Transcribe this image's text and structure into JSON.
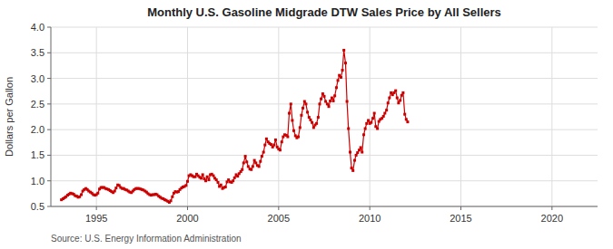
{
  "chart_data": {
    "type": "line",
    "title": "Monthly U.S. Gasoline Midgrade DTW Sales Price by All Sellers",
    "y_label": "Dollars per Gallon",
    "annotation": "Source: U.S. Energy Information Administration",
    "color": "#CC0000",
    "marker": "square",
    "line_style": "solid",
    "grid": true,
    "xlim": [
      1992.5,
      2022.5
    ],
    "xticks": [
      1995,
      2000,
      2005,
      2010,
      2015,
      2020
    ],
    "ylim": [
      0.5,
      4.0
    ],
    "yticks": [
      0.5,
      {
        "value": 1.0,
        "label": "1.0"
      },
      1.5,
      {
        "value": 2.0,
        "label": "2.0"
      },
      2.5,
      {
        "value": 3.0,
        "label": "3.0"
      },
      3.5,
      {
        "value": 4.0,
        "label": "4.0"
      }
    ],
    "x": [
      1993.08,
      1993.17,
      1993.25,
      1993.33,
      1993.42,
      1993.5,
      1993.58,
      1993.67,
      1993.75,
      1993.83,
      1993.92,
      1994.0,
      1994.08,
      1994.17,
      1994.25,
      1994.33,
      1994.42,
      1994.5,
      1994.58,
      1994.67,
      1994.75,
      1994.83,
      1994.92,
      1995.0,
      1995.08,
      1995.17,
      1995.25,
      1995.33,
      1995.42,
      1995.5,
      1995.58,
      1995.67,
      1995.75,
      1995.83,
      1995.92,
      1996.0,
      1996.08,
      1996.17,
      1996.25,
      1996.33,
      1996.42,
      1996.5,
      1996.58,
      1996.67,
      1996.75,
      1996.83,
      1996.92,
      1997.0,
      1997.08,
      1997.17,
      1997.25,
      1997.33,
      1997.42,
      1997.5,
      1997.58,
      1997.67,
      1997.75,
      1997.83,
      1997.92,
      1998.0,
      1998.08,
      1998.17,
      1998.25,
      1998.33,
      1998.42,
      1998.5,
      1998.58,
      1998.67,
      1998.75,
      1998.83,
      1998.92,
      1999.0,
      1999.08,
      1999.17,
      1999.25,
      1999.33,
      1999.42,
      1999.5,
      1999.58,
      1999.67,
      1999.75,
      1999.83,
      1999.92,
      2000.0,
      2000.08,
      2000.17,
      2000.25,
      2000.33,
      2000.42,
      2000.5,
      2000.58,
      2000.67,
      2000.75,
      2000.83,
      2000.92,
      2001.0,
      2001.08,
      2001.17,
      2001.25,
      2001.33,
      2001.42,
      2001.5,
      2001.58,
      2001.67,
      2001.75,
      2001.83,
      2001.92,
      2002.0,
      2002.08,
      2002.17,
      2002.25,
      2002.33,
      2002.42,
      2002.5,
      2002.58,
      2002.67,
      2002.75,
      2002.83,
      2002.92,
      2003.0,
      2003.08,
      2003.17,
      2003.25,
      2003.33,
      2003.42,
      2003.5,
      2003.58,
      2003.67,
      2003.75,
      2003.83,
      2003.92,
      2004.0,
      2004.08,
      2004.17,
      2004.25,
      2004.33,
      2004.42,
      2004.5,
      2004.58,
      2004.67,
      2004.75,
      2004.83,
      2004.92,
      2005.0,
      2005.08,
      2005.17,
      2005.25,
      2005.33,
      2005.42,
      2005.5,
      2005.58,
      2005.67,
      2005.75,
      2005.83,
      2005.92,
      2006.0,
      2006.08,
      2006.17,
      2006.25,
      2006.33,
      2006.42,
      2006.5,
      2006.58,
      2006.67,
      2006.75,
      2006.83,
      2006.92,
      2007.0,
      2007.08,
      2007.17,
      2007.25,
      2007.33,
      2007.42,
      2007.5,
      2007.58,
      2007.67,
      2007.75,
      2007.83,
      2007.92,
      2008.0,
      2008.08,
      2008.17,
      2008.25,
      2008.33,
      2008.42,
      2008.5,
      2008.58,
      2008.67,
      2008.75,
      2008.83,
      2008.92,
      2009.0,
      2009.08,
      2009.17,
      2009.25,
      2009.33,
      2009.42,
      2009.5,
      2009.58,
      2009.67,
      2009.75,
      2009.83,
      2009.92,
      2010.0,
      2010.08,
      2010.17,
      2010.25,
      2010.33,
      2010.42,
      2010.5,
      2010.58,
      2010.67,
      2010.75,
      2010.83,
      2010.92,
      2011.0,
      2011.08,
      2011.17,
      2011.25,
      2011.33,
      2011.42,
      2011.5,
      2011.58,
      2011.67,
      2011.75,
      2011.83,
      2011.92,
      2012.0,
      2012.08
    ],
    "values": [
      0.63,
      0.65,
      0.67,
      0.69,
      0.72,
      0.74,
      0.76,
      0.75,
      0.74,
      0.71,
      0.7,
      0.68,
      0.69,
      0.73,
      0.8,
      0.83,
      0.85,
      0.83,
      0.8,
      0.78,
      0.76,
      0.73,
      0.72,
      0.73,
      0.76,
      0.84,
      0.87,
      0.87,
      0.87,
      0.85,
      0.84,
      0.83,
      0.81,
      0.79,
      0.77,
      0.8,
      0.86,
      0.92,
      0.91,
      0.87,
      0.85,
      0.85,
      0.83,
      0.82,
      0.8,
      0.78,
      0.77,
      0.8,
      0.83,
      0.85,
      0.85,
      0.85,
      0.84,
      0.83,
      0.82,
      0.8,
      0.78,
      0.75,
      0.73,
      0.72,
      0.73,
      0.73,
      0.74,
      0.73,
      0.7,
      0.68,
      0.66,
      0.65,
      0.63,
      0.62,
      0.6,
      0.58,
      0.61,
      0.69,
      0.76,
      0.79,
      0.78,
      0.79,
      0.83,
      0.86,
      0.88,
      0.89,
      0.91,
      0.99,
      1.1,
      1.12,
      1.1,
      1.08,
      1.08,
      1.13,
      1.1,
      1.07,
      1.05,
      1.12,
      1.04,
      1.0,
      1.08,
      1.02,
      1.12,
      1.13,
      1.1,
      1.05,
      1.02,
      0.97,
      0.89,
      0.92,
      0.85,
      0.87,
      0.88,
      0.98,
      1.02,
      0.98,
      0.97,
      1.0,
      1.06,
      1.12,
      1.09,
      1.14,
      1.18,
      1.22,
      1.35,
      1.48,
      1.37,
      1.28,
      1.23,
      1.22,
      1.28,
      1.4,
      1.35,
      1.3,
      1.28,
      1.38,
      1.48,
      1.56,
      1.7,
      1.82,
      1.76,
      1.73,
      1.71,
      1.66,
      1.7,
      1.8,
      1.66,
      1.62,
      1.6,
      1.76,
      1.86,
      1.9,
      1.89,
      1.86,
      2.32,
      2.5,
      2.18,
      1.98,
      1.88,
      1.84,
      1.86,
      2.04,
      2.28,
      2.42,
      2.55,
      2.5,
      2.34,
      2.24,
      2.19,
      2.14,
      2.04,
      2.09,
      2.12,
      2.24,
      2.5,
      2.6,
      2.7,
      2.65,
      2.55,
      2.5,
      2.45,
      2.56,
      2.62,
      2.56,
      2.66,
      2.82,
      2.96,
      3.06,
      3.02,
      3.16,
      3.55,
      3.3,
      2.55,
      2.02,
      1.56,
      1.25,
      1.2,
      1.4,
      1.5,
      1.55,
      1.6,
      1.65,
      1.56,
      1.9,
      2.02,
      2.12,
      2.18,
      2.12,
      2.14,
      2.22,
      2.32,
      2.06,
      2.02,
      2.16,
      2.2,
      2.22,
      2.26,
      2.32,
      2.38,
      2.52,
      2.62,
      2.72,
      2.68,
      2.72,
      2.76,
      2.62,
      2.52,
      2.57,
      2.67,
      2.72,
      2.3,
      2.2,
      2.15
    ]
  }
}
